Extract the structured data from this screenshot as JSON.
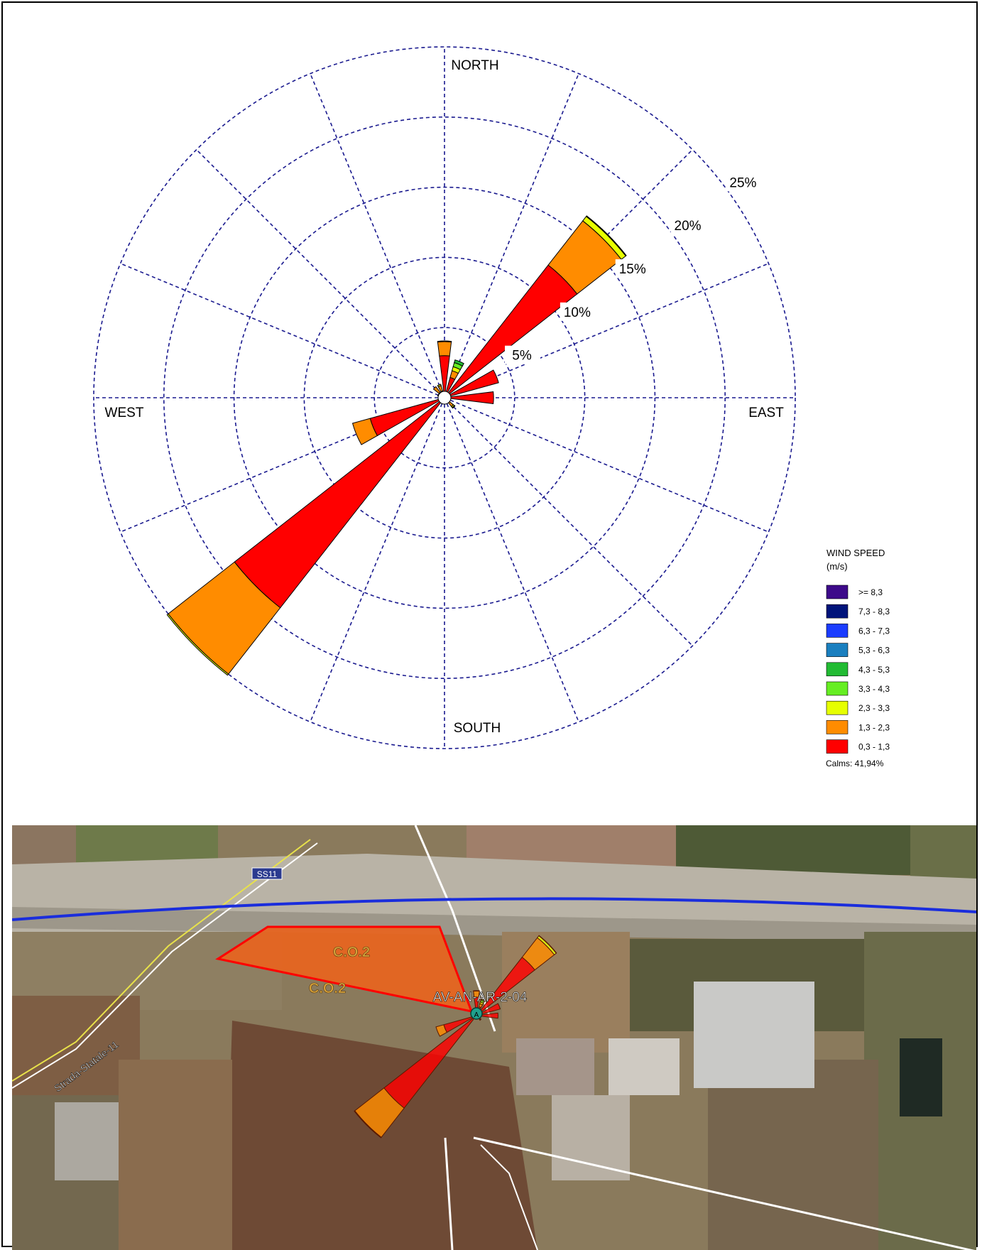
{
  "chart_data": {
    "type": "windrose",
    "directions": [
      "N",
      "NNE",
      "NE",
      "ENE",
      "E",
      "ESE",
      "SE",
      "SSE",
      "S",
      "SSW",
      "SW",
      "WSW",
      "W",
      "WNW",
      "NW",
      "NNW"
    ],
    "cardinal_labels": {
      "north": "NORTH",
      "south": "SOUTH",
      "east": "EAST",
      "west": "WEST"
    },
    "ring_labels": [
      "5%",
      "10%",
      "15%",
      "20%",
      "25%"
    ],
    "ring_values": [
      5,
      10,
      15,
      20,
      25
    ],
    "max_ring": 25,
    "speed_bins": [
      {
        "label": "0,3 - 1,3",
        "color": "#ff0000"
      },
      {
        "label": "1,3 - 2,3",
        "color": "#ff8c00"
      },
      {
        "label": "2,3 - 3,3",
        "color": "#e6ff00"
      },
      {
        "label": "3,3 - 4,3",
        "color": "#66ee22"
      },
      {
        "label": "4,3 - 5,3",
        "color": "#22bb33"
      },
      {
        "label": "5,3 - 6,3",
        "color": "#1a7fbf"
      },
      {
        "label": "6,3 - 7,3",
        "color": "#1a3cff"
      },
      {
        "label": "7,3 - 8,3",
        "color": "#00137a"
      },
      {
        "label": ">= 8,3",
        "color": "#3d0a8a"
      }
    ],
    "series": [
      {
        "name": "0,3 - 1,3",
        "values": [
          3.0,
          1.5,
          12.0,
          4.0,
          3.5,
          0.3,
          0.4,
          0.2,
          0.1,
          0.3,
          19.0,
          5.5,
          0.3,
          0.3,
          0.5,
          0.5
        ]
      },
      {
        "name": "1,3 - 2,3",
        "values": [
          1.0,
          0.5,
          4.0,
          0.0,
          0.0,
          0.0,
          0.4,
          0.0,
          0.0,
          0.0,
          6.0,
          1.3,
          0.0,
          0.2,
          0.5,
          0.4
        ]
      },
      {
        "name": "2,3 - 3,3",
        "values": [
          0.05,
          0.3,
          0.4,
          0.0,
          0.0,
          0.0,
          0.1,
          0.0,
          0.0,
          0.0,
          0.1,
          0.0,
          0.0,
          0.0,
          0.0,
          0.1
        ]
      },
      {
        "name": "3,3 - 4,3",
        "values": [
          0.0,
          0.3,
          0.05,
          0.0,
          0.0,
          0.0,
          0.05,
          0.0,
          0.0,
          0.0,
          0.0,
          0.0,
          0.0,
          0.0,
          0.0,
          0.0
        ]
      },
      {
        "name": "4,3 - 5,3",
        "values": [
          0.0,
          0.2,
          0.0,
          0.0,
          0.0,
          0.0,
          0.0,
          0.0,
          0.0,
          0.0,
          0.0,
          0.0,
          0.0,
          0.0,
          0.0,
          0.0
        ]
      }
    ],
    "legend": {
      "title": "WIND SPEED",
      "unit": "(m/s)",
      "placement": "bottom-right"
    },
    "calms": "Calms: 41,94%",
    "grid": true
  },
  "map": {
    "road_badge": "SS11",
    "road_name": "Strada-Statale-11",
    "zone_label_1": "C.O.2",
    "zone_label_2": "C.O.2",
    "station_label": "AV-AN-AR-2-04",
    "marker_letter": "A",
    "colors": {
      "zone": "#e8641e",
      "boundary": "#ff0000",
      "pipeline": "#1a2ddc",
      "badge": "#2b3a8f"
    }
  }
}
